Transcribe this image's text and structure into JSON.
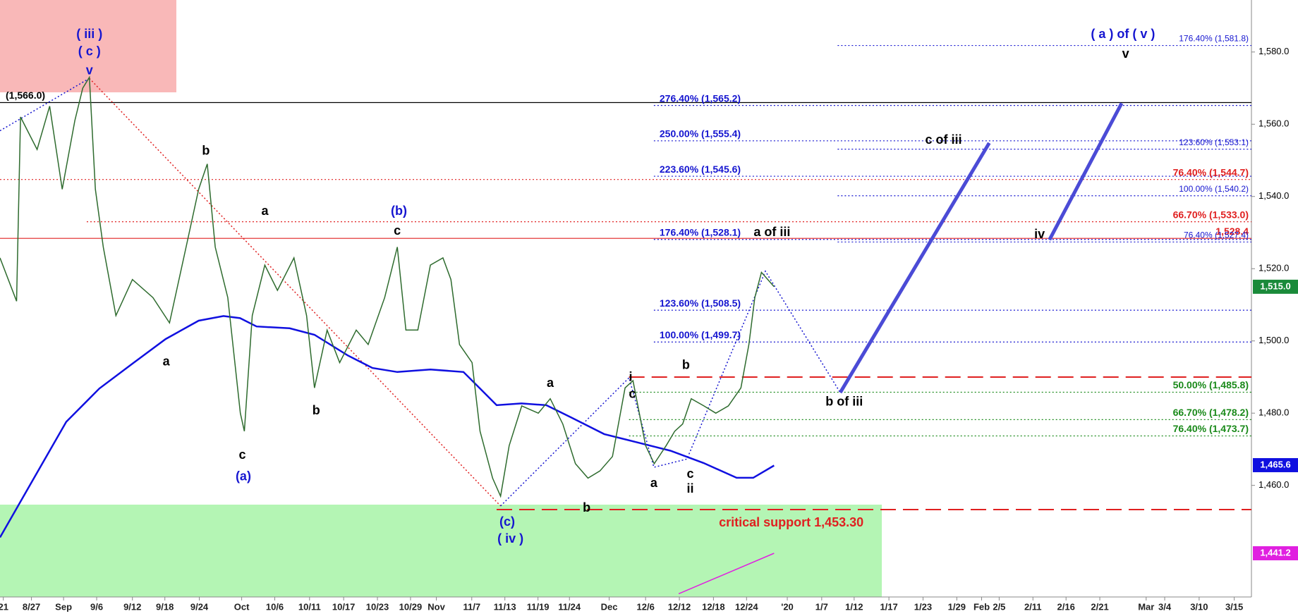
{
  "chart_data": {
    "type": "line",
    "xlim": [
      0,
      189
    ],
    "ylim": [
      1429.1,
      1594.4
    ],
    "xticks": [
      {
        "value": 0.5,
        "label": "21"
      },
      {
        "value": 4.75,
        "label": "8/27"
      },
      {
        "value": 9.6,
        "label": "Sep"
      },
      {
        "value": 14.6,
        "label": "9/6"
      },
      {
        "value": 20,
        "label": "9/12"
      },
      {
        "value": 24.9,
        "label": "9/18"
      },
      {
        "value": 30.1,
        "label": "9/24"
      },
      {
        "value": 36.5,
        "label": "Oct"
      },
      {
        "value": 41.5,
        "label": "10/6"
      },
      {
        "value": 46.75,
        "label": "10/11"
      },
      {
        "value": 51.9,
        "label": "10/17"
      },
      {
        "value": 57,
        "label": "10/23"
      },
      {
        "value": 62,
        "label": "10/29"
      },
      {
        "value": 65.9,
        "label": "Nov"
      },
      {
        "value": 71.25,
        "label": "11/7"
      },
      {
        "value": 76.25,
        "label": "11/13"
      },
      {
        "value": 81.25,
        "label": "11/19"
      },
      {
        "value": 86,
        "label": "11/24"
      },
      {
        "value": 92,
        "label": "Dec"
      },
      {
        "value": 97.5,
        "label": "12/6"
      },
      {
        "value": 102.6,
        "label": "12/12"
      },
      {
        "value": 107.75,
        "label": "12/18"
      },
      {
        "value": 112.75,
        "label": "12/24"
      },
      {
        "value": 118.9,
        "label": "'20"
      },
      {
        "value": 124.1,
        "label": "1/7"
      },
      {
        "value": 129,
        "label": "1/12"
      },
      {
        "value": 134.25,
        "label": "1/17"
      },
      {
        "value": 139.4,
        "label": "1/23"
      },
      {
        "value": 144.5,
        "label": "1/29"
      },
      {
        "value": 148.25,
        "label": "Feb"
      },
      {
        "value": 150.9,
        "label": "2/5"
      },
      {
        "value": 156,
        "label": "2/11"
      },
      {
        "value": 161,
        "label": "2/16"
      },
      {
        "value": 166.1,
        "label": "2/21"
      },
      {
        "value": 173.1,
        "label": "Mar"
      },
      {
        "value": 175.9,
        "label": "3/4"
      },
      {
        "value": 181.1,
        "label": "3/10"
      },
      {
        "value": 186.4,
        "label": "3/15"
      }
    ],
    "yticks": [
      {
        "value": 1460,
        "label": "1,460.0"
      },
      {
        "value": 1480,
        "label": "1,480.0"
      },
      {
        "value": 1500,
        "label": "1,500.0"
      },
      {
        "value": 1520,
        "label": "1,520.0"
      },
      {
        "value": 1540,
        "label": "1,540.0"
      },
      {
        "value": 1560,
        "label": "1,560.0"
      },
      {
        "value": 1580,
        "label": "1,580.0"
      }
    ],
    "price": {
      "color": "#2e6b2e",
      "x": [
        0,
        2.5,
        3.1,
        5.6,
        7.5,
        9.4,
        11.3,
        12.5,
        13.5,
        14.4,
        15.6,
        17.5,
        20,
        23.1,
        25.6,
        28.1,
        30,
        31.3,
        32.5,
        34.4,
        36.3,
        36.9,
        38.1,
        40,
        41.9,
        44.4,
        46.3,
        47.5,
        49.4,
        51.3,
        53.8,
        55.6,
        58.1,
        60,
        61.3,
        63.1,
        65,
        66.9,
        68.1,
        69.4,
        71.3,
        72.5,
        74.4,
        75.6,
        76.9,
        78.8,
        81.3,
        83.1,
        85,
        86.9,
        88.8,
        90.6,
        92.5,
        94.4,
        95.6,
        97.5,
        98.8,
        100.6,
        101.9,
        103.1,
        104.4,
        106.3,
        108.1,
        110,
        111.9,
        113.1,
        114,
        115,
        116.9
      ],
      "values": [
        1523,
        1511,
        1562,
        1553,
        1565,
        1542,
        1561,
        1570,
        1573,
        1542,
        1526,
        1507,
        1517,
        1512,
        1505,
        1526,
        1542,
        1549,
        1526,
        1512,
        1480,
        1475,
        1507,
        1521,
        1514,
        1523,
        1507,
        1487,
        1503,
        1494,
        1503,
        1499,
        1512,
        1526,
        1503,
        1503,
        1521,
        1523,
        1517,
        1499,
        1494,
        1475,
        1462,
        1457,
        1471,
        1482,
        1480,
        1484,
        1477,
        1466,
        1462,
        1464,
        1468,
        1487,
        1489,
        1471,
        1466,
        1471,
        1475,
        1477,
        1484,
        1482,
        1480,
        1482,
        1487,
        1499,
        1512,
        1519,
        1515
      ]
    },
    "moving_average": {
      "color": "#1010e0",
      "x": [
        0,
        5,
        10,
        15,
        20,
        25,
        30,
        33.75,
        36.25,
        38.75,
        43.75,
        47.5,
        52.5,
        56.25,
        60,
        65,
        70,
        72.5,
        75,
        78.75,
        82.5,
        86.25,
        91.25,
        96.25,
        101.25,
        106.25,
        111.25,
        113.75,
        116.9
      ],
      "values": [
        1445.6,
        1461.6,
        1477.6,
        1486.8,
        1493.7,
        1500.5,
        1505.6,
        1506.9,
        1506.3,
        1504.0,
        1503.5,
        1501.7,
        1496.0,
        1492.5,
        1491.4,
        1492.1,
        1491.4,
        1486.8,
        1482.2,
        1482.7,
        1482.2,
        1478.8,
        1474.2,
        1471.9,
        1469.6,
        1466.2,
        1462.1,
        1462.1,
        1465.5
      ]
    },
    "lines": [
      {
        "color": "#e02020",
        "style": "dotted",
        "x": [
          13.5,
          75.6
        ],
        "values": [
          1572.7,
          1454.3
        ]
      },
      {
        "color": "#1515d0",
        "style": "dotted",
        "x": [
          0,
          13.5
        ],
        "values": [
          1558.2,
          1572.7
        ]
      },
      {
        "color": "#1515d0",
        "style": "dotted",
        "x": [
          75.6,
          95,
          98.75,
          103.75,
          115.6,
          126.9
        ],
        "values": [
          1454.3,
          1489.8,
          1465.0,
          1467.3,
          1519.3,
          1485.7
        ]
      },
      {
        "color": "#4b4bd6",
        "style": "thick",
        "x": [
          126.9,
          149.4
        ],
        "values": [
          1485.7,
          1554.8
        ]
      },
      {
        "color": "#4b4bd6",
        "style": "thick",
        "x": [
          158.5,
          169.4
        ],
        "values": [
          1528.0,
          1565.8
        ]
      },
      {
        "color": "#e020e0",
        "style": "solid",
        "x": [
          102.5,
          116.9
        ],
        "values": [
          1430,
          1441.2
        ]
      }
    ],
    "levels": [
      {
        "value": 1581.8,
        "label": "176.40% (1,581.8)",
        "color": "#1515d0",
        "style": "dotted",
        "from": 126.5,
        "anchor": "end"
      },
      {
        "value": 1566.0,
        "label": "(1,566.0)",
        "color": "#000000",
        "style": "solid",
        "from": 0,
        "anchor": "start"
      },
      {
        "value": 1565.2,
        "label": "276.40% (1,565.2)",
        "color": "#1515d0",
        "style": "dotted",
        "from": 98.75,
        "anchor": "start"
      },
      {
        "value": 1555.4,
        "label": "250.00% (1,555.4)",
        "color": "#1515d0",
        "style": "dotted",
        "from": 98.75,
        "anchor": "start"
      },
      {
        "value": 1553.1,
        "label": "123.60% (1,553.1)",
        "color": "#1515d0",
        "style": "dotted",
        "from": 126.5,
        "anchor": "end"
      },
      {
        "value": 1545.6,
        "label": "223.60% (1,545.6)",
        "color": "#1515d0",
        "style": "dotted",
        "from": 98.75,
        "anchor": "start"
      },
      {
        "value": 1544.7,
        "label": "76.40% (1,544.7)",
        "color": "#e02020",
        "style": "dotted",
        "from": 0,
        "anchor": "end"
      },
      {
        "value": 1540.2,
        "label": "100.00% (1,540.2)",
        "color": "#1515d0",
        "style": "dotted",
        "from": 126.5,
        "anchor": "end"
      },
      {
        "value": 1533.0,
        "label": "66.70% (1,533.0)",
        "color": "#e02020",
        "style": "dotted",
        "from": 13.1,
        "anchor": "end"
      },
      {
        "value": 1528.4,
        "label": "1,528.4",
        "color": "#e02020",
        "style": "solid",
        "from": 0,
        "anchor": "end"
      },
      {
        "value": 1528.1,
        "label": "176.40% (1,528.1)",
        "color": "#1515d0",
        "style": "dotted",
        "from": 98.75,
        "anchor": "start"
      },
      {
        "value": 1527.4,
        "label": "76.40% (1,527.4)",
        "color": "#1515d0",
        "style": "dotted",
        "from": 126.5,
        "anchor": "end"
      },
      {
        "value": 1508.5,
        "label": "123.60% (1,508.5)",
        "color": "#1515d0",
        "style": "dotted",
        "from": 98.75,
        "anchor": "start"
      },
      {
        "value": 1499.7,
        "label": "100.00% (1,499.7)",
        "color": "#1515d0",
        "style": "dotted",
        "from": 98.75,
        "anchor": "start"
      },
      {
        "value": 1490.0,
        "color": "#e02020",
        "style": "dashed",
        "from": 95
      },
      {
        "value": 1485.8,
        "label": "50.00% (1,485.8)",
        "color": "#1a8a1a",
        "style": "dotted",
        "from": 95,
        "anchor": "end"
      },
      {
        "value": 1478.2,
        "label": "66.70% (1,478.2)",
        "color": "#1a8a1a",
        "style": "dotted",
        "from": 95,
        "anchor": "end"
      },
      {
        "value": 1473.7,
        "label": "76.40% (1,473.7)",
        "color": "#1a8a1a",
        "style": "dotted",
        "from": 95,
        "anchor": "end"
      },
      {
        "value": 1453.3,
        "color": "#e02020",
        "style": "dashed",
        "from": 75
      }
    ],
    "tags": [
      {
        "value": 1515.0,
        "label": "1,515.0",
        "color": "#1a8a3a"
      },
      {
        "value": 1465.6,
        "label": "1,465.6",
        "color": "#1010e0"
      },
      {
        "value": 1441.2,
        "label": "1,441.2",
        "color": "#e020e0"
      }
    ],
    "annotations": [
      {
        "text": "( iii )",
        "x": 13.5,
        "y": 1584.8,
        "color": "#1515d0"
      },
      {
        "text": "( c )",
        "x": 13.5,
        "y": 1580,
        "color": "#1515d0"
      },
      {
        "text": "v",
        "x": 13.5,
        "y": 1574.7,
        "color": "#1515d0"
      },
      {
        "text": "b",
        "x": 31.1,
        "y": 1552.5,
        "color": "#000000"
      },
      {
        "text": "a",
        "x": 40,
        "y": 1535.8,
        "color": "#000000"
      },
      {
        "text": "(b)",
        "x": 60.25,
        "y": 1535.8,
        "color": "#1515d0"
      },
      {
        "text": "c",
        "x": 60,
        "y": 1530.3,
        "color": "#000000"
      },
      {
        "text": "a",
        "x": 25.1,
        "y": 1494.1,
        "color": "#000000"
      },
      {
        "text": "b",
        "x": 47.75,
        "y": 1480.6,
        "color": "#000000"
      },
      {
        "text": "c",
        "x": 36.6,
        "y": 1468.3,
        "color": "#000000"
      },
      {
        "text": "(a)",
        "x": 36.75,
        "y": 1462.3,
        "color": "#1515d0"
      },
      {
        "text": "a",
        "x": 83.1,
        "y": 1488.2,
        "color": "#000000"
      },
      {
        "text": "i",
        "x": 95.25,
        "y": 1489.8,
        "color": "#000000"
      },
      {
        "text": "c",
        "x": 95.5,
        "y": 1485.2,
        "color": "#000000"
      },
      {
        "text": "b",
        "x": 103.6,
        "y": 1493.2,
        "color": "#000000"
      },
      {
        "text": "a",
        "x": 98.75,
        "y": 1460.5,
        "color": "#000000"
      },
      {
        "text": "c",
        "x": 104.25,
        "y": 1463.0,
        "color": "#000000"
      },
      {
        "text": "ii",
        "x": 104.25,
        "y": 1458.9,
        "color": "#000000"
      },
      {
        "text": "b",
        "x": 88.6,
        "y": 1453.6,
        "color": "#000000"
      },
      {
        "text": "(c)",
        "x": 76.6,
        "y": 1449.7,
        "color": "#1515d0"
      },
      {
        "text": "( iv )",
        "x": 77.1,
        "y": 1445.1,
        "color": "#1515d0"
      },
      {
        "text": "a of iii",
        "x": 116.6,
        "y": 1529.9,
        "color": "#000000"
      },
      {
        "text": "b of iii",
        "x": 127.5,
        "y": 1483.0,
        "color": "#000000"
      },
      {
        "text": "c of iii",
        "x": 142.5,
        "y": 1555.5,
        "color": "#000000"
      },
      {
        "text": "iv",
        "x": 157,
        "y": 1529.4,
        "color": "#000000"
      },
      {
        "text": "( a ) of ( v )",
        "x": 169.6,
        "y": 1584.8,
        "color": "#1515d0"
      },
      {
        "text": "v",
        "x": 170,
        "y": 1579.3,
        "color": "#000000"
      },
      {
        "text": "critical support 1,453.30",
        "x": 119.5,
        "y": 1449.5,
        "color": "#e02020"
      }
    ]
  }
}
